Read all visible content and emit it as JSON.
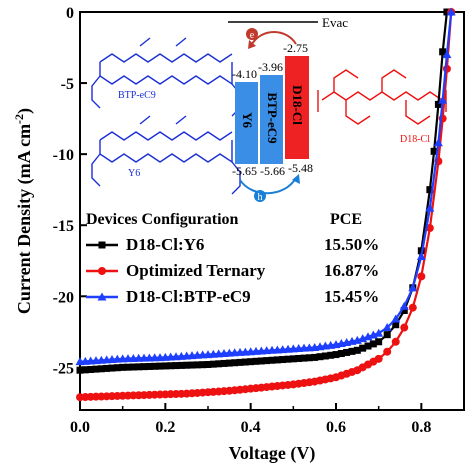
{
  "chart_data": {
    "type": "line",
    "xlabel": "Voltage (V)",
    "ylabel": "Current Density (mA cm",
    "ylabel_sup": "-2",
    "ylabel_close": ")",
    "xlim": [
      0.0,
      0.9
    ],
    "ylim": [
      -28,
      0
    ],
    "x_ticks": [
      0.0,
      0.2,
      0.4,
      0.6,
      0.8
    ],
    "x_tick_labels": [
      "0.0",
      "0.2",
      "0.4",
      "0.6",
      "0.8"
    ],
    "y_ticks": [
      0,
      -5,
      -10,
      -15,
      -20,
      -25
    ],
    "y_tick_labels": [
      "0",
      "-5",
      "-10",
      "-15",
      "-20",
      "-25"
    ],
    "legend_title": "Devices Configuration",
    "legend_pce_header": "PCE",
    "legend_position": "lower-left",
    "series": [
      {
        "name": "D18-Cl:Y6",
        "pce": "15.50%",
        "color": "#000000",
        "marker": "square",
        "x": [
          0.0,
          0.05,
          0.1,
          0.15,
          0.2,
          0.25,
          0.3,
          0.35,
          0.4,
          0.45,
          0.5,
          0.55,
          0.6,
          0.65,
          0.7,
          0.72,
          0.74,
          0.76,
          0.78,
          0.8,
          0.82,
          0.83,
          0.84,
          0.85,
          0.86
        ],
        "y": [
          -25.2,
          -25.1,
          -25.0,
          -24.95,
          -24.9,
          -24.85,
          -24.8,
          -24.7,
          -24.6,
          -24.5,
          -24.4,
          -24.3,
          -24.1,
          -23.8,
          -23.2,
          -22.7,
          -22.0,
          -21.0,
          -19.4,
          -16.8,
          -12.5,
          -9.8,
          -6.5,
          -2.8,
          0.0
        ]
      },
      {
        "name": "Optimized Ternary",
        "pce": "16.87%",
        "color": "#ee1111",
        "marker": "circle",
        "x": [
          0.0,
          0.05,
          0.1,
          0.15,
          0.2,
          0.25,
          0.3,
          0.35,
          0.4,
          0.45,
          0.5,
          0.55,
          0.6,
          0.65,
          0.7,
          0.72,
          0.74,
          0.76,
          0.78,
          0.8,
          0.82,
          0.84,
          0.85,
          0.86,
          0.87
        ],
        "y": [
          -27.1,
          -27.05,
          -27.0,
          -26.95,
          -26.9,
          -26.85,
          -26.75,
          -26.65,
          -26.5,
          -26.35,
          -26.2,
          -26.0,
          -25.7,
          -25.2,
          -24.4,
          -23.9,
          -23.2,
          -22.2,
          -20.8,
          -18.6,
          -15.2,
          -10.5,
          -7.5,
          -4.0,
          0.0
        ]
      },
      {
        "name": "D18-Cl:BTP-eC9",
        "pce": "15.45%",
        "color": "#1f3fff",
        "marker": "triangle",
        "x": [
          0.0,
          0.05,
          0.1,
          0.15,
          0.2,
          0.25,
          0.3,
          0.35,
          0.4,
          0.45,
          0.5,
          0.55,
          0.6,
          0.65,
          0.7,
          0.72,
          0.74,
          0.76,
          0.78,
          0.8,
          0.82,
          0.84,
          0.85,
          0.86,
          0.87
        ],
        "y": [
          -24.6,
          -24.5,
          -24.4,
          -24.35,
          -24.3,
          -24.2,
          -24.1,
          -24.0,
          -23.9,
          -23.8,
          -23.7,
          -23.6,
          -23.4,
          -23.1,
          -22.6,
          -22.2,
          -21.6,
          -20.7,
          -19.4,
          -17.2,
          -13.8,
          -9.2,
          -6.2,
          -3.0,
          0.0
        ]
      }
    ]
  },
  "inset": {
    "evac_label": "Evac",
    "electron_badge": "e",
    "hole_badge": "h",
    "levels": [
      {
        "name": "Y6",
        "lumo": "-4.10",
        "homo": "-5.65",
        "color": "#3a8ee6"
      },
      {
        "name": "BTP-eC9",
        "lumo": "-3.96",
        "homo": "-5.66",
        "color": "#3a8ee6"
      },
      {
        "name": "D18-Cl",
        "lumo": "-2.75",
        "homo": "-5.48",
        "color": "#ee2222"
      }
    ],
    "molecule_labels": [
      "BTP-eC9",
      "Y6",
      "D18-Cl"
    ]
  }
}
